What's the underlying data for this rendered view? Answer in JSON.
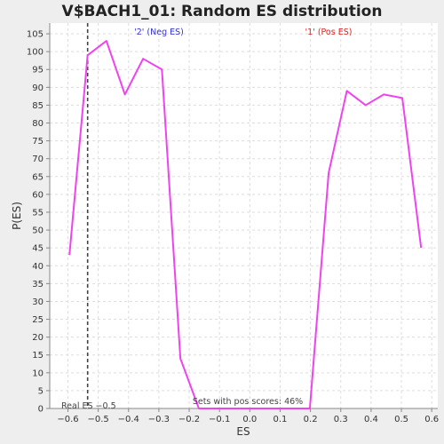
{
  "chart_data": {
    "type": "line",
    "title": "V$BACH1_01: Random ES distribution",
    "xlabel": "ES",
    "ylabel": "P(ES)",
    "xlim": [
      -0.66,
      0.62
    ],
    "ylim": [
      0,
      108
    ],
    "x_ticks": [
      -0.6,
      -0.5,
      -0.4,
      -0.3,
      -0.2,
      -0.1,
      0.0,
      0.1,
      0.2,
      0.3,
      0.4,
      0.5,
      0.6
    ],
    "x_tick_labels": [
      "−0.6",
      "−0.5",
      "−0.4",
      "−0.3",
      "−0.2",
      "−0.1",
      "0.0",
      "0.1",
      "0.2",
      "0.3",
      "0.4",
      "0.5",
      "0.6"
    ],
    "y_ticks": [
      0,
      5,
      10,
      15,
      20,
      25,
      30,
      35,
      40,
      45,
      50,
      55,
      60,
      65,
      70,
      75,
      80,
      85,
      90,
      95,
      100,
      105
    ],
    "grid": true,
    "series": [
      {
        "color": "#ee44ee",
        "x": [
          -0.595,
          -0.535,
          -0.473,
          -0.412,
          -0.352,
          -0.29,
          -0.229,
          -0.168,
          0.0,
          0.198,
          0.26,
          0.32,
          0.382,
          0.442,
          0.503,
          0.565
        ],
        "y": [
          43,
          99,
          103,
          88,
          98,
          95,
          14,
          0,
          0,
          0,
          66,
          89,
          85,
          88,
          87,
          45
        ]
      }
    ],
    "real_es": -0.535,
    "annotations": {
      "neg_label": "'2' (Neg ES)",
      "pos_label": "'1' (Pos ES)",
      "real_es_label": "Real ES −0.5",
      "pos_scores_label": "Sets with pos scores: 46%"
    },
    "colors": {
      "neg_label": "#3333cc",
      "pos_label": "#dd2222",
      "line": "#ee44ee",
      "real_es_line": "#444444",
      "grid": "#dddddd",
      "plot_bg": "#ffffff"
    }
  }
}
